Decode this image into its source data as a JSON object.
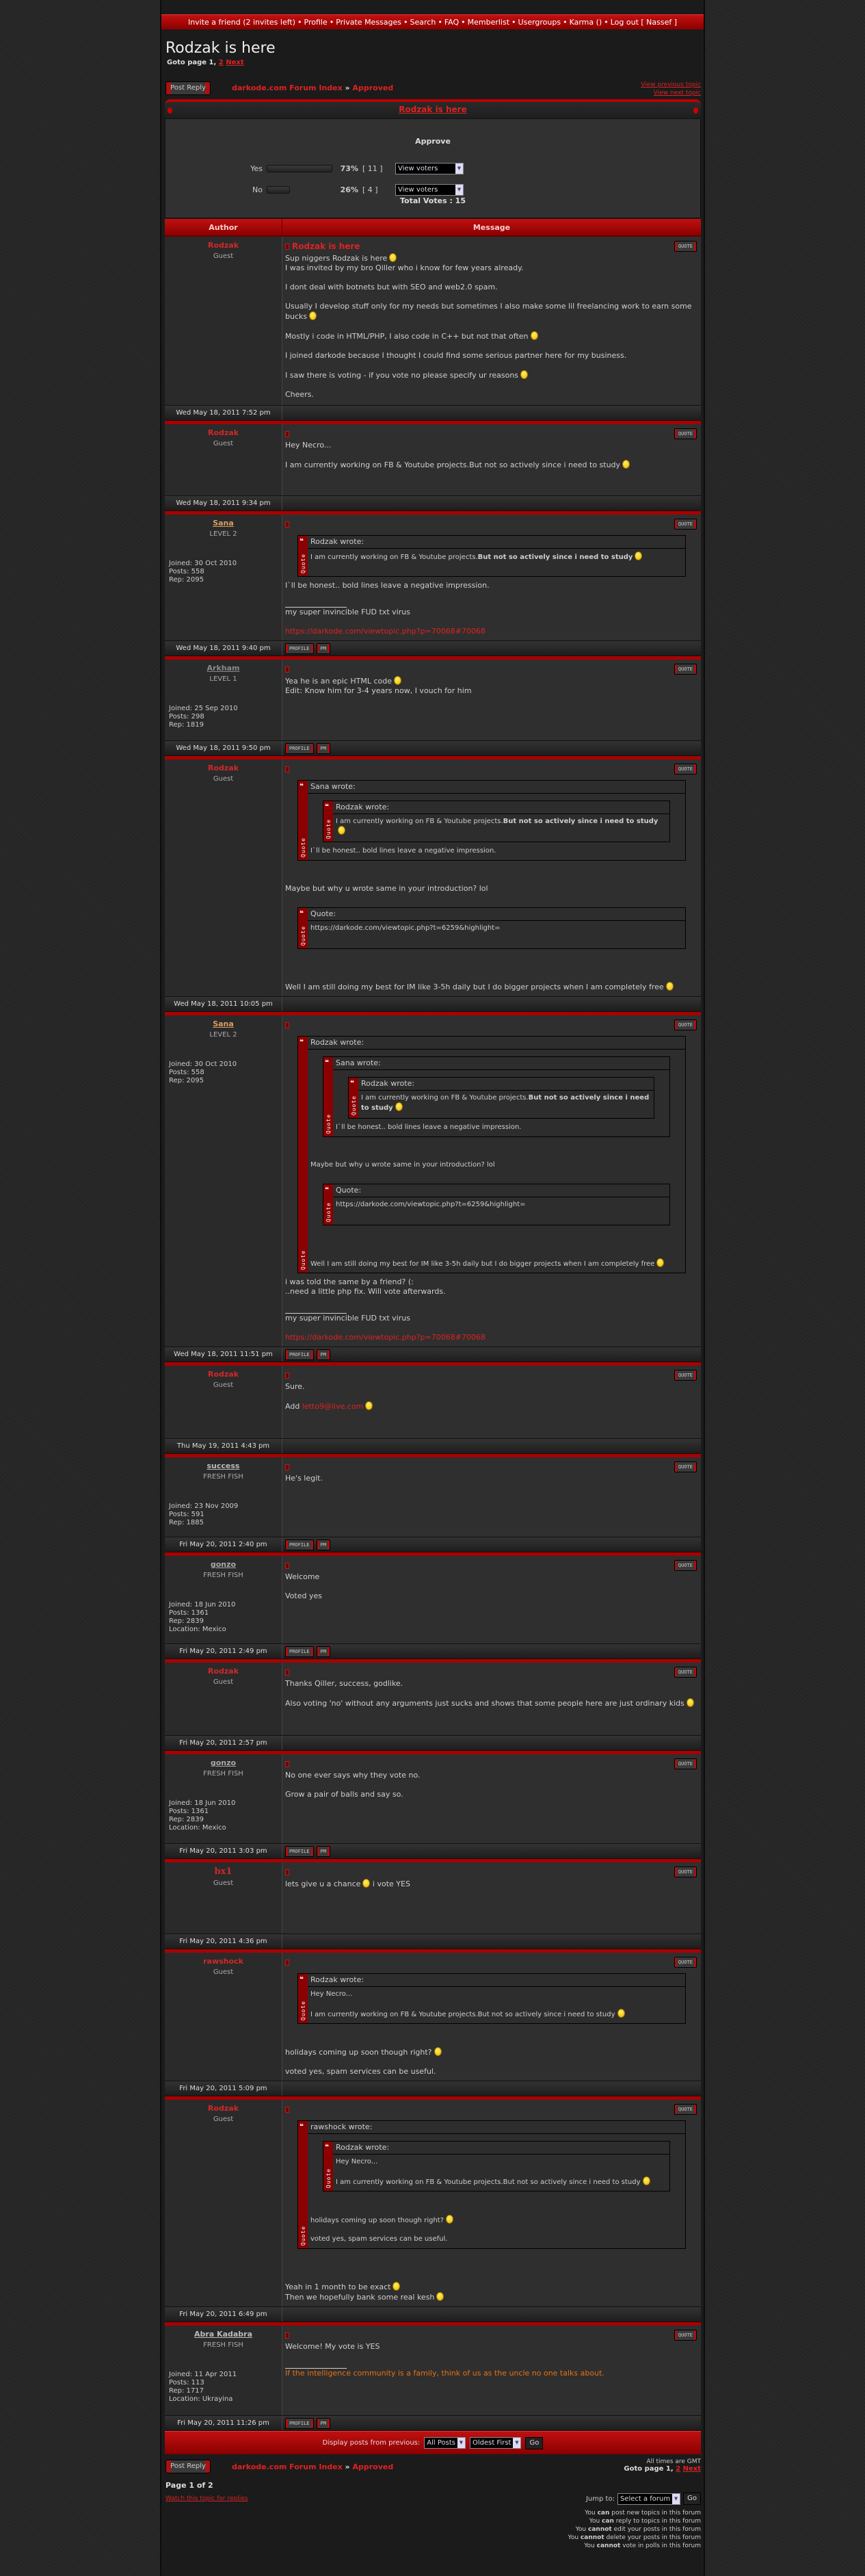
{
  "nav": {
    "items": [
      "Invite a friend (2 invites left)",
      "Profile",
      "Private Messages",
      "Search",
      "FAQ",
      "Memberlist",
      "Usergroups",
      "Karma ()",
      "Log out [ Nassef ]"
    ]
  },
  "topic": {
    "title": "Rodzak is here",
    "goto_prefix": "Goto page 1, ",
    "goto_page2": "2",
    "goto_next": "Next",
    "post_reply": "Post Reply",
    "crumb_index": "darkode.com Forum Index",
    "crumb_sep": " » ",
    "crumb_forum": "Approved",
    "view_prev": "View previous topic",
    "view_next": "View next topic"
  },
  "poll": {
    "question": "Approve",
    "options": [
      {
        "label": "Yes",
        "percent": 73,
        "percent_label": "73%",
        "count": "[ 11 ]",
        "select": "View voters"
      },
      {
        "label": "No",
        "percent": 26,
        "percent_label": "26%",
        "count": "[ 4 ]",
        "select": "View voters"
      }
    ],
    "total": "Total Votes : 15"
  },
  "table": {
    "author_header": "Author",
    "message_header": "Message"
  },
  "labels": {
    "quote_btn": "QUOTE",
    "profile_btn": "PROFILE",
    "pm_btn": "PM",
    "quote_side": "Quote"
  },
  "posts": [
    {
      "author": "Rodzak",
      "author_color": "#d22828",
      "rank": "Guest",
      "date": "Wed May 18, 2011 7:52 pm",
      "title": "Rodzak is here",
      "btns": false,
      "body": [
        [
          {
            "x": "Sup niggers Rodzak is here"
          },
          {
            "sm": "smile"
          }
        ],
        [
          {
            "x": "I was invited by my bro Qiller who i know for few years already."
          }
        ],
        [],
        [
          {
            "x": "I dont deal with botnets but with SEO and web2.0 spam."
          }
        ],
        [],
        [
          {
            "x": "Usually I develop stuff only for my needs but sometimes I also make some lil freelancing work to earn some bucks"
          },
          {
            "sm": "smile"
          }
        ],
        [],
        [
          {
            "x": "Mostly i code in HTML/PHP, I also code in C++ but not that often"
          },
          {
            "sm": "tongue"
          }
        ],
        [],
        [
          {
            "x": "I joined darkode because I thought I could find some serious partner here for my business."
          }
        ],
        [],
        [
          {
            "x": "I saw there is voting - if you vote no please specify ur reasons"
          },
          {
            "sm": "smile"
          }
        ],
        [],
        [
          {
            "x": "Cheers."
          }
        ]
      ]
    },
    {
      "author": "Rodzak",
      "author_color": "#d22828",
      "rank": "Guest",
      "date": "Wed May 18, 2011 9:34 pm",
      "btns": false,
      "body": [
        [
          {
            "x": "Hey Necro..."
          }
        ],
        [],
        [
          {
            "x": "I am currently working on FB & Youtube projects.But not so actively since i need to study"
          },
          {
            "sm": "sad"
          }
        ]
      ]
    },
    {
      "author": "Sana",
      "author_color": "#d8a060",
      "underline": true,
      "rank": "LEVEL 2",
      "stats": [
        "Joined: 30 Oct 2010",
        "Posts: 558",
        "Rep: 2095"
      ],
      "date": "Wed May 18, 2011 9:40 pm",
      "btns": true,
      "body": [
        [
          {
            "q": {
              "title": "Rodzak wrote:",
              "body": [
                [
                  {
                    "x": "I am currently working on FB & Youtube projects."
                  },
                  {
                    "b": "But not so actively since i need to study"
                  },
                  {
                    "sm": "sad"
                  }
                ]
              ]
            }
          }
        ],
        [
          {
            "x": "I`ll be honest.. bold lines leave a negative impression."
          }
        ]
      ],
      "sig": [
        [
          {
            "x": "my super invincible FUD txt virus"
          }
        ],
        [],
        [
          {
            "a": "https://darkode.com/viewtopic.php?p=70068#70068"
          }
        ]
      ]
    },
    {
      "author": "Arkham",
      "author_color": "#8a8a8a",
      "underline": true,
      "rank": "LEVEL 1",
      "stats": [
        "Joined: 25 Sep 2010",
        "Posts: 298",
        "Rep: 1819"
      ],
      "date": "Wed May 18, 2011 9:50 pm",
      "btns": true,
      "body": [
        [
          {
            "x": "Yea he is an epic HTML code"
          },
          {
            "sm": "cool"
          }
        ],
        [
          {
            "x": "Edit: Know him for 3-4 years now, I vouch for him"
          }
        ]
      ]
    },
    {
      "author": "Rodzak",
      "author_color": "#d22828",
      "rank": "Guest",
      "date": "Wed May 18, 2011 10:05 pm",
      "btns": false,
      "body": [
        [
          {
            "q": {
              "title": "Sana wrote:",
              "body": [
                [
                  {
                    "q": {
                      "title": "Rodzak wrote:",
                      "body": [
                        [
                          {
                            "x": "I am currently working on FB & Youtube projects."
                          },
                          {
                            "b": "But not so actively since i need to study"
                          },
                          {
                            "sm": "sad"
                          }
                        ]
                      ]
                    }
                  }
                ],
                [
                  {
                    "x": "I`ll be honest.. bold lines leave a negative impression."
                  }
                ]
              ]
            }
          }
        ],
        [],
        [],
        [
          {
            "x": "Maybe but why u wrote same in your introduction? lol"
          }
        ],
        [],
        [
          {
            "q": {
              "title": "Quote:",
              "body": [
                [
                  {
                    "x": "https://darkode.com/viewtopic.php?t=6259&highlight="
                  }
                ]
              ]
            }
          }
        ],
        [],
        [],
        [],
        [
          {
            "x": "Well I am still doing my best for IM like 3-5h daily but I do bigger projects when I am completely free"
          },
          {
            "sm": "smile"
          }
        ]
      ]
    },
    {
      "author": "Sana",
      "author_color": "#d8a060",
      "underline": true,
      "rank": "LEVEL 2",
      "stats": [
        "Joined: 30 Oct 2010",
        "Posts: 558",
        "Rep: 2095"
      ],
      "date": "Wed May 18, 2011 11:51 pm",
      "btns": true,
      "body": [
        [
          {
            "q": {
              "title": "Rodzak wrote:",
              "body": [
                [
                  {
                    "q": {
                      "title": "Sana wrote:",
                      "body": [
                        [
                          {
                            "q": {
                              "title": "Rodzak wrote:",
                              "body": [
                                [
                                  {
                                    "x": "I am currently working on FB & Youtube projects."
                                  },
                                  {
                                    "b": "But not so actively since i need to study"
                                  },
                                  {
                                    "sm": "sad"
                                  }
                                ]
                              ]
                            }
                          }
                        ],
                        [
                          {
                            "x": "I`ll be honest.. bold lines leave a negative impression."
                          }
                        ]
                      ]
                    }
                  }
                ],
                [],
                [],
                [
                  {
                    "x": "Maybe but why u wrote same in your introduction? lol"
                  }
                ],
                [],
                [
                  {
                    "q": {
                      "title": "Quote:",
                      "body": [
                        [
                          {
                            "x": "https://darkode.com/viewtopic.php?t=6259&highlight="
                          }
                        ]
                      ]
                    }
                  }
                ],
                [],
                [],
                [],
                [
                  {
                    "x": "Well I am still doing my best for IM like 3-5h daily but I do bigger projects when I am completely free"
                  },
                  {
                    "sm": "smile"
                  }
                ]
              ]
            }
          }
        ],
        [
          {
            "x": "i was told the same by a friend? (:"
          }
        ],
        [
          {
            "x": "..need a little php fix. Will vote afterwards."
          }
        ]
      ],
      "sig": [
        [
          {
            "x": "my super invincible FUD txt virus"
          }
        ],
        [],
        [
          {
            "a": "https://darkode.com/viewtopic.php?p=70068#70068"
          }
        ]
      ]
    },
    {
      "author": "Rodzak",
      "author_color": "#d22828",
      "rank": "Guest",
      "date": "Thu May 19, 2011 4:43 pm",
      "btns": false,
      "body": [
        [
          {
            "x": "Sure."
          }
        ],
        [],
        [
          {
            "x": "Add "
          },
          {
            "a": "letto9@live.com"
          },
          {
            "sm": "smile"
          }
        ]
      ]
    },
    {
      "author": "success",
      "author_color": "#bbbbbb",
      "underline": true,
      "rank": "FRESH FISH",
      "stats": [
        "Joined: 23 Nov 2009",
        "Posts: 591",
        "Rep: 1885"
      ],
      "date": "Fri May 20, 2011 2:40 pm",
      "btns": true,
      "body": [
        [
          {
            "x": "He's legit."
          }
        ]
      ]
    },
    {
      "author": "gonzo",
      "author_color": "#aaaaaa",
      "underline": true,
      "rank": "FRESH FISH",
      "stats": [
        "Joined: 18 Jun 2010",
        "Posts: 1361",
        "Rep: 2839",
        "Location: Mexico"
      ],
      "date": "Fri May 20, 2011 2:49 pm",
      "btns": true,
      "body": [
        [
          {
            "x": "Welcome"
          }
        ],
        [],
        [
          {
            "x": "Voted yes"
          }
        ]
      ]
    },
    {
      "author": "Rodzak",
      "author_color": "#d22828",
      "rank": "Guest",
      "date": "Fri May 20, 2011 2:57 pm",
      "btns": false,
      "body": [
        [
          {
            "x": "Thanks Qiller, success, godlike."
          }
        ],
        [],
        [
          {
            "x": "Also voting 'no' without any arguments just sucks and shows that some people here are just ordinary kids"
          },
          {
            "sm": "neutral"
          }
        ]
      ]
    },
    {
      "author": "gonzo",
      "author_color": "#aaaaaa",
      "underline": true,
      "rank": "FRESH FISH",
      "stats": [
        "Joined: 18 Jun 2010",
        "Posts: 1361",
        "Rep: 2839",
        "Location: Mexico"
      ],
      "date": "Fri May 20, 2011 3:03 pm",
      "btns": true,
      "body": [
        [
          {
            "x": "No one ever says why they vote no."
          }
        ],
        [],
        [
          {
            "x": "Grow a pair of balls and say so."
          }
        ]
      ]
    },
    {
      "author": "bx1",
      "author_color": "#d22828",
      "serif": true,
      "rank": "Guest",
      "date": "Fri May 20, 2011 4:36 pm",
      "btns": false,
      "body": [
        [
          {
            "x": "lets give u a chance"
          },
          {
            "sm": "smile"
          },
          {
            "x": " i vote YES"
          }
        ]
      ]
    },
    {
      "author": "rawshock",
      "author_color": "#d22828",
      "rank": "Guest",
      "date": "Fri May 20, 2011 5:09 pm",
      "btns": false,
      "body": [
        [
          {
            "q": {
              "title": "Rodzak wrote:",
              "body": [
                [
                  {
                    "x": "Hey Necro..."
                  }
                ],
                [],
                [
                  {
                    "x": "I am currently working on FB & Youtube projects.But not so actively since i need to study"
                  },
                  {
                    "sm": "sad"
                  }
                ]
              ]
            }
          }
        ],
        [],
        [],
        [
          {
            "x": "holidays coming up soon though right?"
          },
          {
            "sm": "smile"
          }
        ],
        [],
        [
          {
            "x": "voted yes, spam services can be useful."
          }
        ]
      ]
    },
    {
      "author": "Rodzak",
      "author_color": "#d22828",
      "rank": "Guest",
      "date": "Fri May 20, 2011 6:49 pm",
      "btns": false,
      "body": [
        [
          {
            "q": {
              "title": "rawshock wrote:",
              "body": [
                [
                  {
                    "q": {
                      "title": "Rodzak wrote:",
                      "body": [
                        [
                          {
                            "x": "Hey Necro..."
                          }
                        ],
                        [],
                        [
                          {
                            "x": "I am currently working on FB & Youtube projects.But not so actively since i need to study"
                          },
                          {
                            "sm": "sad"
                          }
                        ]
                      ]
                    }
                  }
                ],
                [],
                [],
                [
                  {
                    "x": "holidays coming up soon though right?"
                  },
                  {
                    "sm": "smile"
                  }
                ],
                [],
                [
                  {
                    "x": "voted yes, spam services can be useful."
                  }
                ]
              ]
            }
          }
        ],
        [],
        [],
        [],
        [
          {
            "x": "Yeah in 1 month to be exact"
          },
          {
            "sm": "tongue"
          }
        ],
        [
          {
            "x": "Then we hopefully bank some real kesh"
          },
          {
            "sm": "cool"
          }
        ]
      ]
    },
    {
      "author": "Abra Kadabra",
      "author_color": "#bbbbbb",
      "underline": true,
      "rank": "FRESH FISH",
      "stats": [
        "Joined: 11 Apr 2011",
        "Posts: 113",
        "Rep: 1717",
        "Location: Ukrayina"
      ],
      "date": "Fri May 20, 2011 11:26 pm",
      "btns": true,
      "body": [
        [
          {
            "x": "Welcome! My vote is YES"
          }
        ]
      ],
      "sig_orange": true,
      "sig": [
        [
          {
            "x": "If the intelligence community is a family, think of us as the uncle no one talks about."
          }
        ]
      ]
    }
  ],
  "display": {
    "label": "Display posts from previous:",
    "range": "All Posts",
    "order": "Oldest First",
    "go": "Go"
  },
  "footer": {
    "times": "All times are GMT",
    "page_of": "Page 1 of 2",
    "watch": "Watch this topic for replies",
    "jump_label": "Jump to:",
    "jump_select": "Select a forum",
    "jump_go": "Go",
    "perms": [
      {
        "pre": "You ",
        "b": "can",
        "post": " post new topics in this forum"
      },
      {
        "pre": "You ",
        "b": "can",
        "post": " reply to topics in this forum"
      },
      {
        "pre": "You ",
        "b": "cannot",
        "post": " edit your posts in this forum"
      },
      {
        "pre": "You ",
        "b": "cannot",
        "post": " delete your posts in this forum"
      },
      {
        "pre": "You ",
        "b": "cannot",
        "post": " vote in polls in this forum"
      }
    ]
  },
  "colors": {
    "accent": "#b00000",
    "link": "#d22828",
    "signature_orange": "#e87010"
  }
}
